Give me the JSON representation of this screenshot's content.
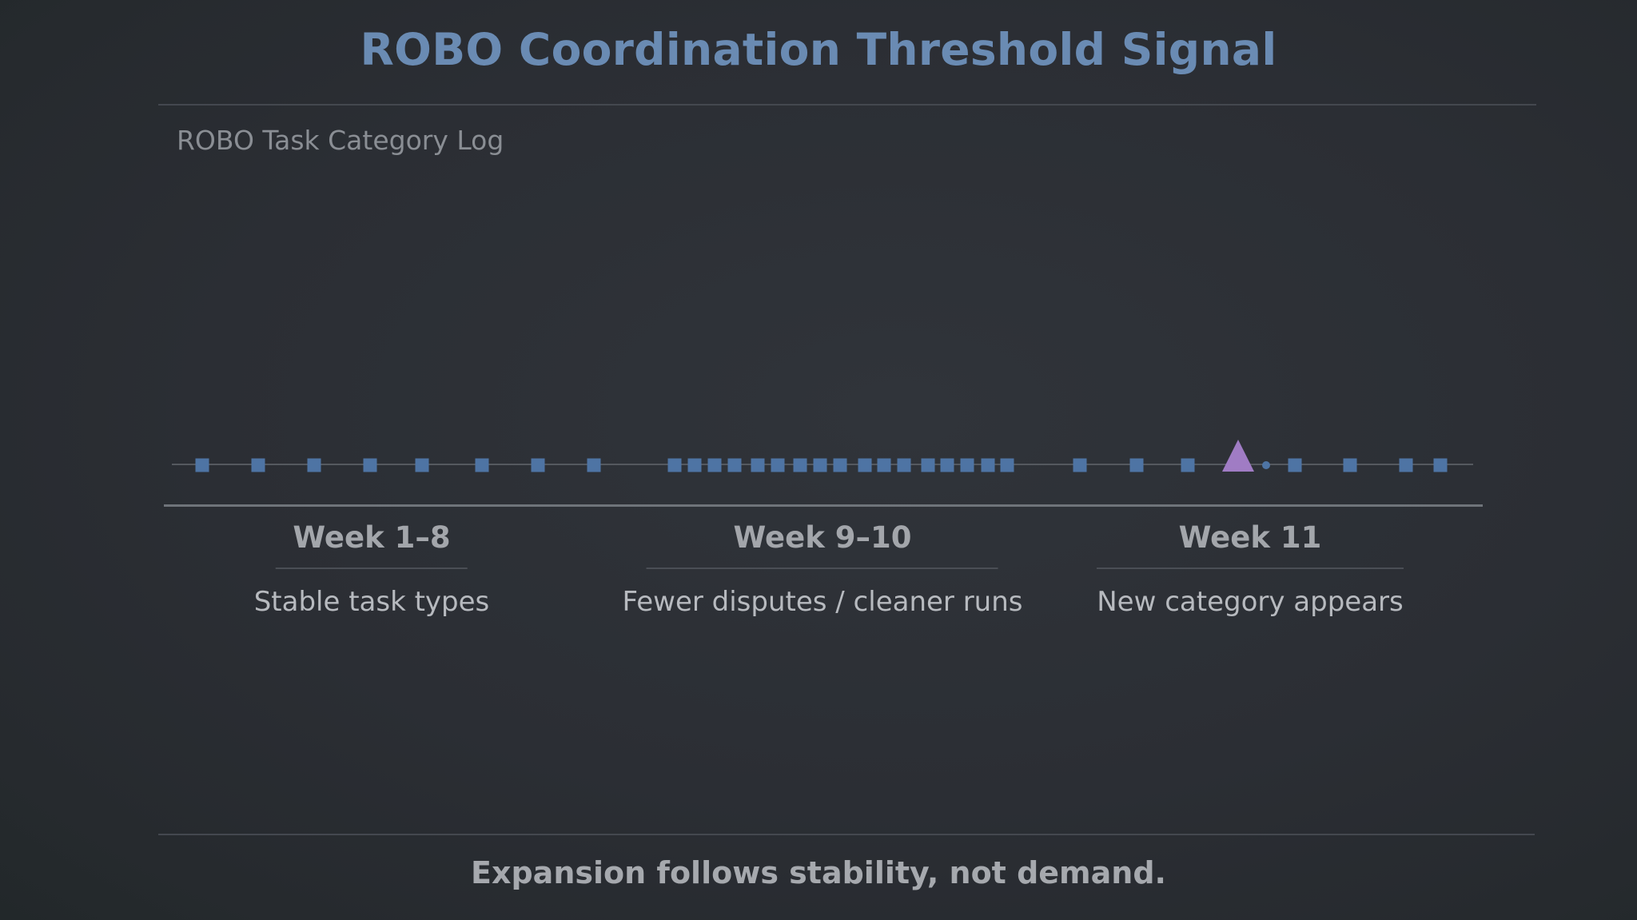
{
  "title": "ROBO Coordination Threshold Signal",
  "subtitle": "ROBO Task Category Log",
  "colors": {
    "title": "#6a8bb3",
    "marker": "#4e74a4",
    "new_category_marker": "#a07cc4",
    "baseline": "#55595f"
  },
  "timeline": {
    "phases": [
      {
        "week": "Week 1–8",
        "description": "Stable task types",
        "task_count": 8
      },
      {
        "week": "Week 9–10",
        "description": "Fewer disputes / cleaner runs",
        "task_count": 17
      },
      {
        "week": "Week 11",
        "description": "New category appears",
        "task_count": 7
      }
    ],
    "new_category_marker_count": 1
  },
  "tagline": "Expansion follows stability, not demand."
}
